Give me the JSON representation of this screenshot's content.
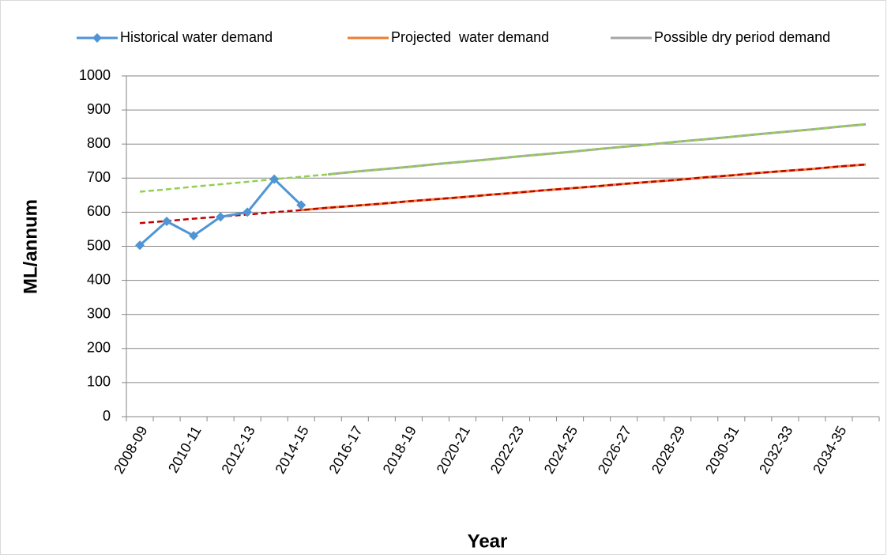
{
  "chart_data": {
    "type": "line",
    "x_label": "Year",
    "y_label": "ML/annum",
    "categories": [
      "2008-09",
      null,
      "2010-11",
      null,
      "2012-13",
      null,
      "2014-15",
      null,
      "2016-17",
      null,
      "2018-19",
      null,
      "2020-21",
      null,
      "2022-23",
      null,
      "2024-25",
      null,
      "2026-27",
      null,
      "2028-29",
      null,
      "2030-31",
      null,
      "2032-33",
      null,
      "2034-35",
      null
    ],
    "series": [
      {
        "name": "Historical water demand",
        "color": "#4f95d6",
        "marker": "diamond",
        "values": [
          503,
          573,
          531,
          586,
          600,
          697,
          621,
          null,
          null,
          null,
          null,
          null,
          null,
          null,
          null,
          null,
          null,
          null,
          null,
          null,
          null,
          null,
          null,
          null,
          null,
          null,
          null,
          null
        ]
      },
      {
        "name": "Projected  water demand",
        "color": "#ed7d31",
        "values": [
          null,
          null,
          null,
          null,
          null,
          null,
          606,
          613,
          619,
          625,
          632,
          638,
          644,
          651,
          657,
          664,
          670,
          676,
          683,
          689,
          695,
          702,
          708,
          715,
          721,
          727,
          734,
          740
        ]
      },
      {
        "name": "Possible dry period demand",
        "color": "#a5a5a5",
        "values": [
          null,
          null,
          null,
          null,
          null,
          null,
          null,
          711,
          719,
          726,
          733,
          741,
          748,
          755,
          763,
          770,
          777,
          785,
          792,
          799,
          807,
          814,
          821,
          829,
          836,
          843,
          851,
          858
        ]
      }
    ],
    "trendlines": [
      {
        "color": "#c00000",
        "values": [
          568,
          574,
          581,
          587,
          593,
          600,
          606,
          613,
          619,
          625,
          632,
          638,
          644,
          651,
          657,
          664,
          670,
          676,
          683,
          689,
          695,
          702,
          708,
          715,
          721,
          727,
          734,
          740
        ]
      },
      {
        "color": "#92d050",
        "values": [
          660,
          667,
          675,
          682,
          689,
          697,
          704,
          711,
          719,
          726,
          733,
          741,
          748,
          755,
          763,
          770,
          777,
          785,
          792,
          799,
          807,
          814,
          821,
          829,
          836,
          843,
          851,
          858
        ]
      }
    ],
    "ylim": [
      0,
      1000
    ],
    "yticks": [
      0,
      100,
      200,
      300,
      400,
      500,
      600,
      700,
      800,
      900,
      1000
    ],
    "grid": true,
    "legend": "top"
  }
}
